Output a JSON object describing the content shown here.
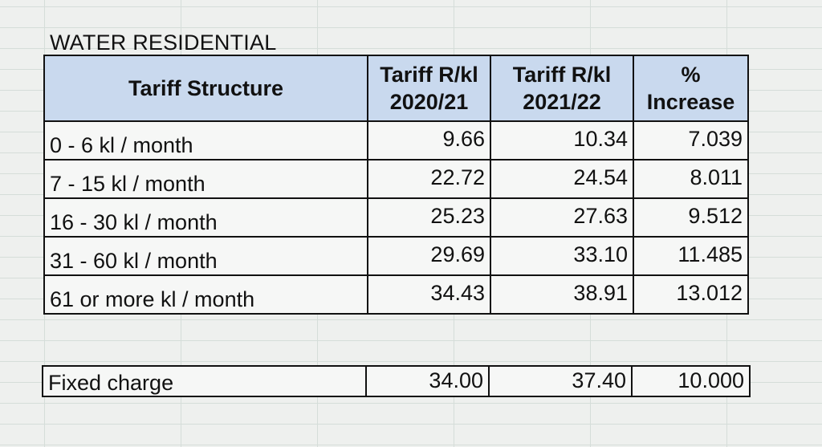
{
  "title": "WATER RESIDENTIAL",
  "headers": {
    "structure": "Tariff Structure",
    "col1": [
      "Tariff R/kl",
      "2020/21"
    ],
    "col2": [
      "Tariff R/kl",
      "2021/22"
    ],
    "col3": [
      "%",
      "Increase"
    ]
  },
  "rows": [
    {
      "label": "0 - 6 kl / month",
      "t2021": "9.66",
      "t2122": "10.34",
      "inc": "7.039"
    },
    {
      "label": "7 - 15 kl / month",
      "t2021": "22.72",
      "t2122": "24.54",
      "inc": "8.011"
    },
    {
      "label": "16 - 30 kl / month",
      "t2021": "25.23",
      "t2122": "27.63",
      "inc": "9.512"
    },
    {
      "label": "31 - 60 kl / month",
      "t2021": "29.69",
      "t2122": "33.10",
      "inc": "11.485"
    },
    {
      "label": "61 or more kl / month",
      "t2021": "34.43",
      "t2122": "38.91",
      "inc": "13.012"
    }
  ],
  "fixed": {
    "label": "Fixed charge",
    "t2021": "34.00",
    "t2122": "37.40",
    "inc": "10.000"
  },
  "colors": {
    "header_bg": "#c9d9ee",
    "grid": "#c9d3cf"
  }
}
